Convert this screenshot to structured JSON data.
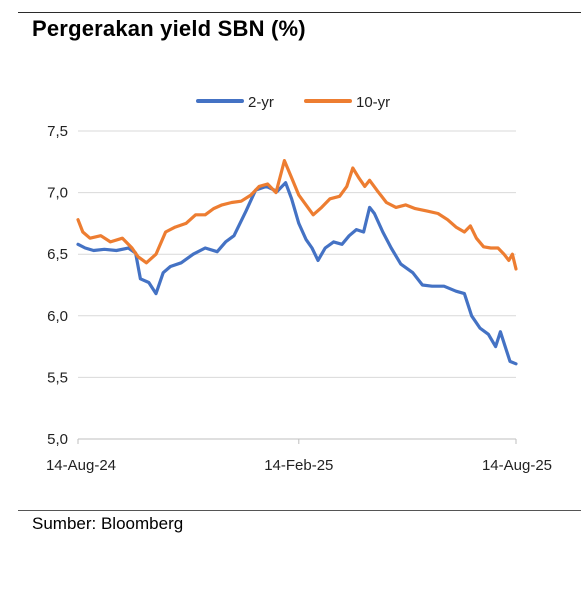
{
  "title": "Pergerakan yield SBN (%)",
  "source": "Sumber: Bloomberg",
  "colors": {
    "series_2yr": "#4472C4",
    "series_10yr": "#ED7D31",
    "grid": "#d9d9d9",
    "axis": "#bfbfbf"
  },
  "chart_data": {
    "type": "line",
    "title": "Pergerakan yield SBN (%)",
    "xlabel": "",
    "ylabel": "",
    "ylim": [
      5.0,
      7.5
    ],
    "yticks": [
      "7,5",
      "7,0",
      "6,5",
      "6,0",
      "5,5",
      "5,0"
    ],
    "ytick_values": [
      7.5,
      7.0,
      6.5,
      6.0,
      5.5,
      5.0
    ],
    "xlim": [
      "2024-08-14",
      "2025-08-14"
    ],
    "xticks": [
      {
        "date": "2024-08-14",
        "label": "14-Aug-24"
      },
      {
        "date": "2025-02-14",
        "label": "14-Feb-25"
      },
      {
        "date": "2025-08-14",
        "label": "14-Aug-25"
      }
    ],
    "grid": "horizontal",
    "legend": "top-center",
    "series": [
      {
        "name": "2-yr",
        "points": [
          [
            "2024-08-14",
            6.58
          ],
          [
            "2024-08-20",
            6.55
          ],
          [
            "2024-08-27",
            6.53
          ],
          [
            "2024-09-05",
            6.54
          ],
          [
            "2024-09-15",
            6.53
          ],
          [
            "2024-09-25",
            6.55
          ],
          [
            "2024-10-01",
            6.51
          ],
          [
            "2024-10-05",
            6.3
          ],
          [
            "2024-10-12",
            6.27
          ],
          [
            "2024-10-18",
            6.18
          ],
          [
            "2024-10-24",
            6.35
          ],
          [
            "2024-10-30",
            6.4
          ],
          [
            "2024-11-08",
            6.43
          ],
          [
            "2024-11-18",
            6.5
          ],
          [
            "2024-11-28",
            6.55
          ],
          [
            "2024-12-08",
            6.52
          ],
          [
            "2024-12-15",
            6.6
          ],
          [
            "2024-12-22",
            6.65
          ],
          [
            "2025-01-01",
            6.85
          ],
          [
            "2025-01-09",
            7.02
          ],
          [
            "2025-01-18",
            7.05
          ],
          [
            "2025-01-27",
            7.01
          ],
          [
            "2025-02-03",
            7.08
          ],
          [
            "2025-02-08",
            6.95
          ],
          [
            "2025-02-14",
            6.75
          ],
          [
            "2025-02-20",
            6.62
          ],
          [
            "2025-02-25",
            6.55
          ],
          [
            "2025-03-02",
            6.45
          ],
          [
            "2025-03-08",
            6.55
          ],
          [
            "2025-03-15",
            6.6
          ],
          [
            "2025-03-22",
            6.58
          ],
          [
            "2025-03-28",
            6.65
          ],
          [
            "2025-04-03",
            6.7
          ],
          [
            "2025-04-09",
            6.68
          ],
          [
            "2025-04-14",
            6.88
          ],
          [
            "2025-04-18",
            6.83
          ],
          [
            "2025-04-25",
            6.68
          ],
          [
            "2025-05-02",
            6.55
          ],
          [
            "2025-05-10",
            6.42
          ],
          [
            "2025-05-20",
            6.35
          ],
          [
            "2025-05-28",
            6.25
          ],
          [
            "2025-06-05",
            6.24
          ],
          [
            "2025-06-15",
            6.24
          ],
          [
            "2025-06-25",
            6.2
          ],
          [
            "2025-07-02",
            6.18
          ],
          [
            "2025-07-08",
            6.0
          ],
          [
            "2025-07-15",
            5.9
          ],
          [
            "2025-07-22",
            5.85
          ],
          [
            "2025-07-28",
            5.75
          ],
          [
            "2025-08-01",
            5.87
          ],
          [
            "2025-08-05",
            5.75
          ],
          [
            "2025-08-09",
            5.63
          ],
          [
            "2025-08-14",
            5.61
          ]
        ]
      },
      {
        "name": "10-yr",
        "points": [
          [
            "2024-08-14",
            6.78
          ],
          [
            "2024-08-18",
            6.68
          ],
          [
            "2024-08-24",
            6.63
          ],
          [
            "2024-09-02",
            6.65
          ],
          [
            "2024-09-10",
            6.6
          ],
          [
            "2024-09-20",
            6.63
          ],
          [
            "2024-09-28",
            6.55
          ],
          [
            "2024-10-03",
            6.48
          ],
          [
            "2024-10-10",
            6.43
          ],
          [
            "2024-10-18",
            6.5
          ],
          [
            "2024-10-26",
            6.68
          ],
          [
            "2024-11-03",
            6.72
          ],
          [
            "2024-11-12",
            6.75
          ],
          [
            "2024-11-20",
            6.82
          ],
          [
            "2024-11-28",
            6.82
          ],
          [
            "2024-12-05",
            6.87
          ],
          [
            "2024-12-12",
            6.9
          ],
          [
            "2024-12-20",
            6.92
          ],
          [
            "2024-12-28",
            6.93
          ],
          [
            "2025-01-05",
            6.98
          ],
          [
            "2025-01-12",
            7.05
          ],
          [
            "2025-01-19",
            7.07
          ],
          [
            "2025-01-26",
            7.0
          ],
          [
            "2025-02-02",
            7.26
          ],
          [
            "2025-02-08",
            7.12
          ],
          [
            "2025-02-14",
            6.98
          ],
          [
            "2025-02-20",
            6.9
          ],
          [
            "2025-02-26",
            6.82
          ],
          [
            "2025-03-05",
            6.88
          ],
          [
            "2025-03-12",
            6.95
          ],
          [
            "2025-03-20",
            6.97
          ],
          [
            "2025-03-26",
            7.05
          ],
          [
            "2025-03-31",
            7.2
          ],
          [
            "2025-04-05",
            7.12
          ],
          [
            "2025-04-10",
            7.05
          ],
          [
            "2025-04-14",
            7.1
          ],
          [
            "2025-04-20",
            7.02
          ],
          [
            "2025-04-28",
            6.92
          ],
          [
            "2025-05-06",
            6.88
          ],
          [
            "2025-05-14",
            6.9
          ],
          [
            "2025-05-22",
            6.87
          ],
          [
            "2025-06-01",
            6.85
          ],
          [
            "2025-06-10",
            6.83
          ],
          [
            "2025-06-18",
            6.78
          ],
          [
            "2025-06-25",
            6.72
          ],
          [
            "2025-07-02",
            6.68
          ],
          [
            "2025-07-07",
            6.73
          ],
          [
            "2025-07-12",
            6.63
          ],
          [
            "2025-07-18",
            6.56
          ],
          [
            "2025-07-24",
            6.55
          ],
          [
            "2025-07-30",
            6.55
          ],
          [
            "2025-08-04",
            6.5
          ],
          [
            "2025-08-08",
            6.45
          ],
          [
            "2025-08-11",
            6.5
          ],
          [
            "2025-08-14",
            6.38
          ]
        ]
      }
    ]
  }
}
